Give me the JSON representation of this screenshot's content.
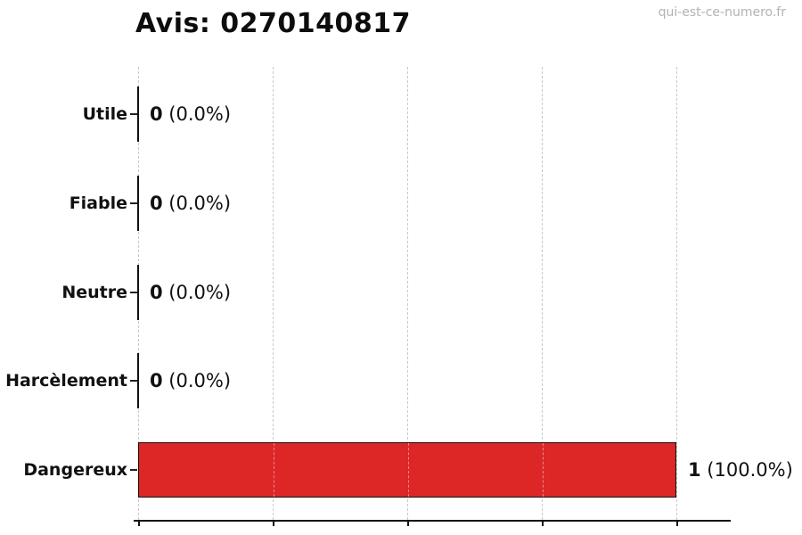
{
  "watermark": {
    "text": "qui-est-ce-numero.fr"
  },
  "chart_data": {
    "type": "bar",
    "orientation": "horizontal",
    "title": "Avis: 0270140817",
    "categories": [
      "Utile",
      "Fiable",
      "Neutre",
      "Harcèlement",
      "Dangereux"
    ],
    "values": [
      0,
      0,
      0,
      0,
      1
    ],
    "value_labels": [
      {
        "count": "0",
        "pct": "(0.0%)"
      },
      {
        "count": "0",
        "pct": "(0.0%)"
      },
      {
        "count": "0",
        "pct": "(0.0%)"
      },
      {
        "count": "0",
        "pct": "(0.0%)"
      },
      {
        "count": "1",
        "pct": "(100.0%)"
      }
    ],
    "xlabel": "",
    "ylabel": "",
    "xlim": [
      0,
      1.1
    ],
    "xticks": [
      0,
      0.25,
      0.5,
      0.75,
      1
    ],
    "xtick_labels_visible": false,
    "grid": true,
    "grid_style": "dashed",
    "grid_color": "#c9c9c9",
    "bar_color": "#dd2727",
    "bar_edge_color": "#111111",
    "legend": false
  }
}
